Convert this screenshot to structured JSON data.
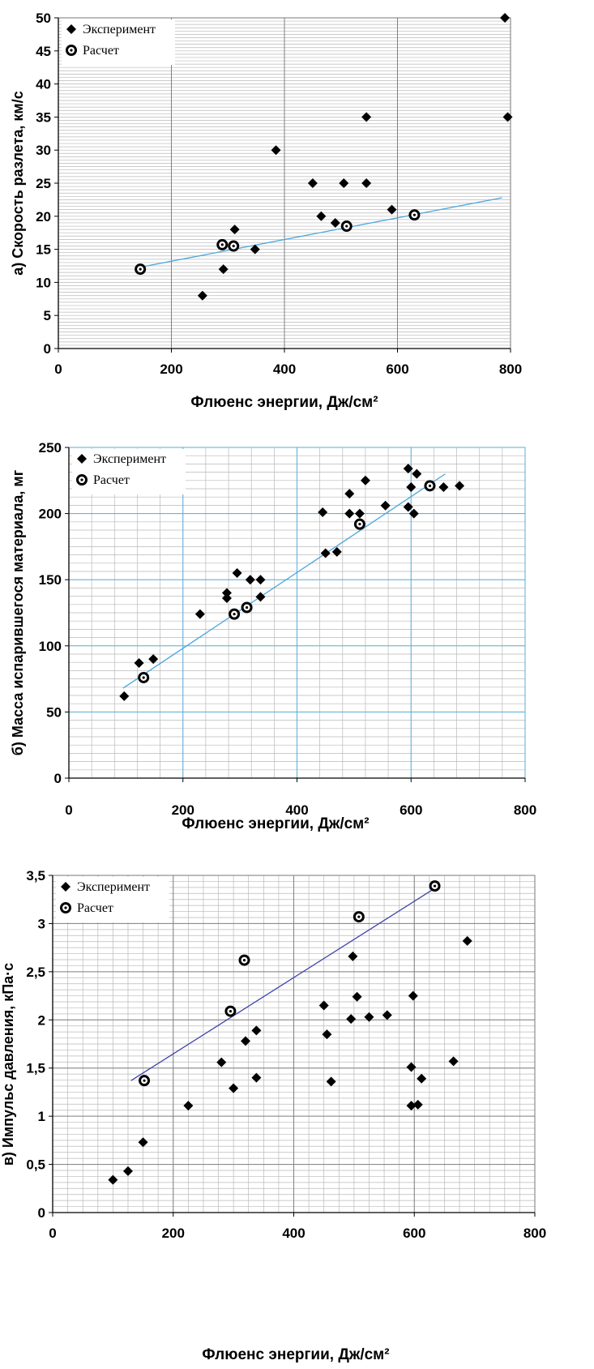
{
  "chart_data": [
    {
      "type": "scatter",
      "ylabel": "а)  Скорость разлета, км/с",
      "xlabel": "Флюенс энергии, Дж/см²",
      "xlim": [
        0,
        800
      ],
      "ylim": [
        0,
        50
      ],
      "xticks": [
        "0",
        "200",
        "400",
        "600",
        "800"
      ],
      "yticks": [
        "0",
        "5",
        "10",
        "15",
        "20",
        "25",
        "30",
        "35",
        "40",
        "45",
        "50"
      ],
      "legend_position": "top-left",
      "grid": "major-x, minor-y",
      "series": [
        {
          "name": "Эксперимент",
          "marker": "diamond",
          "points": [
            [
              255,
              8
            ],
            [
              292,
              12
            ],
            [
              312,
              18
            ],
            [
              348,
              15
            ],
            [
              385,
              30
            ],
            [
              450,
              25
            ],
            [
              465,
              20
            ],
            [
              490,
              19
            ],
            [
              505,
              25
            ],
            [
              545,
              35
            ],
            [
              545,
              25
            ],
            [
              590,
              21
            ],
            [
              790,
              50
            ],
            [
              795,
              35
            ]
          ]
        },
        {
          "name": "Расчет",
          "marker": "ring",
          "points": [
            [
              145,
              12
            ],
            [
              290,
              15.7
            ],
            [
              310,
              15.5
            ],
            [
              510,
              18.5
            ],
            [
              630,
              20.2
            ]
          ]
        }
      ],
      "trendline": {
        "from": [
          145,
          12.3
        ],
        "to": [
          785,
          22.8
        ],
        "color": "#4aa6dc"
      }
    },
    {
      "type": "scatter",
      "ylabel": "б)  Масса испарившегося материала,  мг",
      "xlabel": "Флюенс энергии, Дж/см²",
      "xlim": [
        0,
        800
      ],
      "ylim": [
        0,
        250
      ],
      "xticks": [
        "0",
        "200",
        "400",
        "600",
        "800"
      ],
      "yticks": [
        "0",
        "50",
        "100",
        "150",
        "200",
        "250"
      ],
      "legend_position": "top-left",
      "grid": "major + minor",
      "series": [
        {
          "name": "Эксперимент",
          "marker": "diamond",
          "points": [
            [
              97,
              62
            ],
            [
              123,
              87
            ],
            [
              148,
              90
            ],
            [
              230,
              124
            ],
            [
              277,
              140
            ],
            [
              277,
              136
            ],
            [
              295,
              155
            ],
            [
              318,
              150
            ],
            [
              336,
              150
            ],
            [
              336,
              137
            ],
            [
              445,
              201
            ],
            [
              450,
              170
            ],
            [
              470,
              171
            ],
            [
              492,
              215
            ],
            [
              492,
              200
            ],
            [
              510,
              200
            ],
            [
              520,
              225
            ],
            [
              555,
              206
            ],
            [
              595,
              234
            ],
            [
              595,
              205
            ],
            [
              600,
              220
            ],
            [
              605,
              200
            ],
            [
              610,
              230
            ],
            [
              657,
              220
            ],
            [
              685,
              221
            ]
          ]
        },
        {
          "name": "Расчет",
          "marker": "ring",
          "points": [
            [
              131,
              76
            ],
            [
              290,
              124
            ],
            [
              312,
              129
            ],
            [
              510,
              192
            ],
            [
              633,
              221
            ]
          ]
        }
      ],
      "trendline": {
        "from": [
          95,
          68
        ],
        "to": [
          660,
          230
        ],
        "color": "#4aa6dc"
      }
    },
    {
      "type": "scatter",
      "ylabel": "в)  Импульс давления, кПа·с",
      "xlabel": "Флюенс энергии, Дж/см²",
      "xlim": [
        0,
        800
      ],
      "ylim": [
        0,
        3.5
      ],
      "xticks": [
        "0",
        "200",
        "400",
        "600",
        "800"
      ],
      "yticks": [
        "0",
        "0,5",
        "1",
        "1,5",
        "2",
        "2,5",
        "3",
        "3,5"
      ],
      "legend_position": "top-left",
      "grid": "major + minor",
      "series": [
        {
          "name": "Эксперимент",
          "marker": "diamond",
          "points": [
            [
              100,
              0.34
            ],
            [
              125,
              0.43
            ],
            [
              150,
              0.73
            ],
            [
              225,
              1.11
            ],
            [
              280,
              1.56
            ],
            [
              300,
              1.29
            ],
            [
              320,
              1.78
            ],
            [
              338,
              1.4
            ],
            [
              338,
              1.89
            ],
            [
              450,
              2.15
            ],
            [
              455,
              1.85
            ],
            [
              462,
              1.36
            ],
            [
              495,
              2.01
            ],
            [
              498,
              2.66
            ],
            [
              505,
              2.24
            ],
            [
              525,
              2.03
            ],
            [
              555,
              2.05
            ],
            [
              595,
              1.51
            ],
            [
              595,
              1.11
            ],
            [
              598,
              2.25
            ],
            [
              606,
              1.12
            ],
            [
              612,
              1.39
            ],
            [
              665,
              1.57
            ],
            [
              688,
              2.82
            ]
          ]
        },
        {
          "name": "Расчет",
          "marker": "ring",
          "points": [
            [
              152,
              1.37
            ],
            [
              295,
              2.09
            ],
            [
              318,
              2.62
            ],
            [
              508,
              3.07
            ],
            [
              634,
              3.39
            ]
          ]
        }
      ],
      "trendline": {
        "from": [
          130,
          1.37
        ],
        "to": [
          630,
          3.35
        ],
        "color": "#3e42a8"
      }
    }
  ]
}
